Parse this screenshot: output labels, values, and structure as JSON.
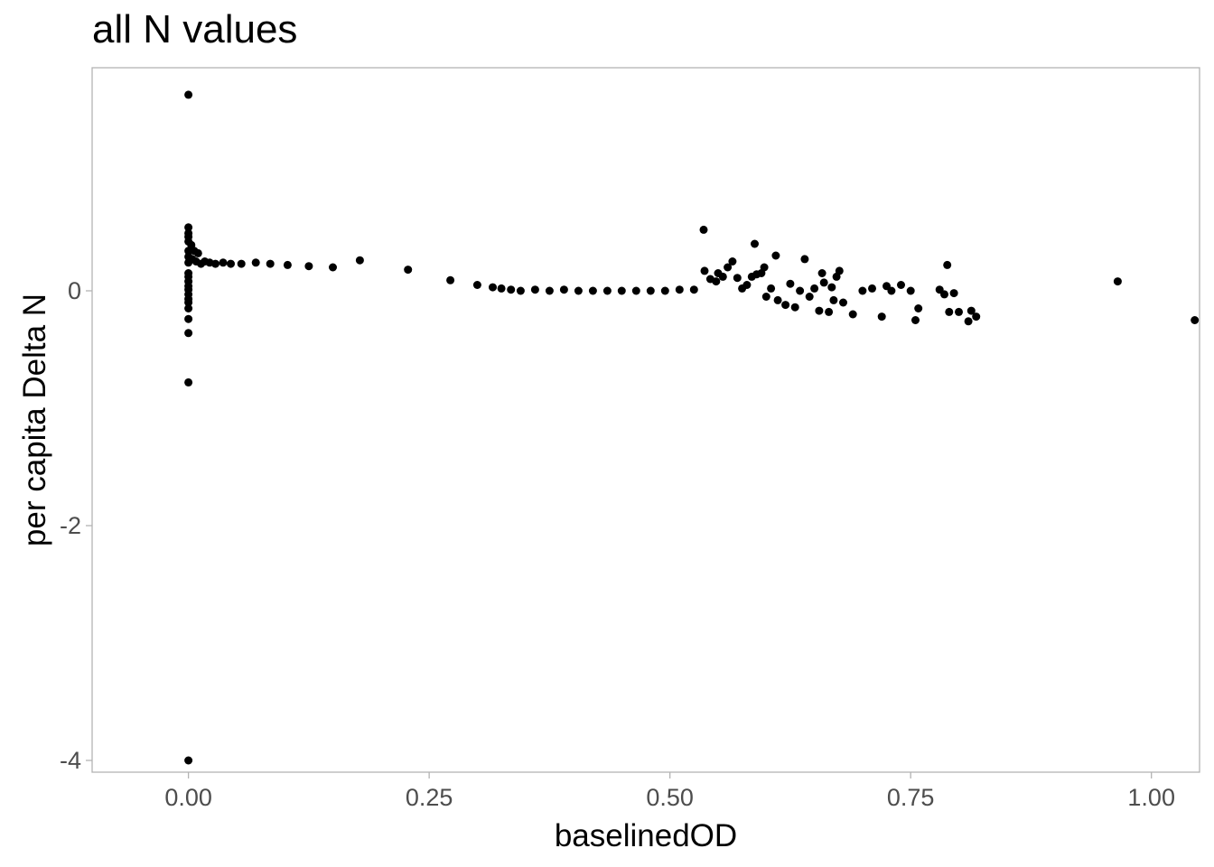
{
  "chart_data": {
    "type": "scatter",
    "title": "all N values",
    "xlabel": "baselinedOD",
    "ylabel": "per capita Delta N",
    "xlim": [
      -0.1,
      1.05
    ],
    "ylim": [
      -4.1,
      1.9
    ],
    "x_ticks": [
      0.0,
      0.25,
      0.5,
      0.75,
      1.0
    ],
    "x_tick_labels": [
      "0.00",
      "0.25",
      "0.50",
      "0.75",
      "1.00"
    ],
    "y_ticks": [
      -4,
      -2,
      0
    ],
    "y_tick_labels": [
      "-4",
      "-2",
      "0"
    ],
    "grid": false,
    "point_color": "#000000",
    "panel_border_color": "#b3b3b3",
    "points": [
      [
        0.0,
        1.67
      ],
      [
        0.0,
        0.54
      ],
      [
        0.0,
        0.49
      ],
      [
        0.0,
        0.46
      ],
      [
        0.0,
        0.42
      ],
      [
        0.0,
        0.34
      ],
      [
        0.0,
        0.29
      ],
      [
        0.0,
        0.24
      ],
      [
        0.0,
        0.15
      ],
      [
        0.0,
        0.12
      ],
      [
        0.0,
        0.08
      ],
      [
        0.0,
        0.04
      ],
      [
        0.0,
        0.01
      ],
      [
        0.0,
        -0.03
      ],
      [
        0.0,
        -0.07
      ],
      [
        0.0,
        -0.1
      ],
      [
        0.0,
        -0.15
      ],
      [
        0.0,
        -0.24
      ],
      [
        0.0,
        -0.36
      ],
      [
        0.0,
        -0.78
      ],
      [
        0.0,
        -4.0
      ],
      [
        0.003,
        0.39
      ],
      [
        0.004,
        0.27
      ],
      [
        0.006,
        0.34
      ],
      [
        0.008,
        0.25
      ],
      [
        0.01,
        0.32
      ],
      [
        0.013,
        0.23
      ],
      [
        0.017,
        0.25
      ],
      [
        0.022,
        0.24
      ],
      [
        0.028,
        0.23
      ],
      [
        0.036,
        0.24
      ],
      [
        0.044,
        0.23
      ],
      [
        0.055,
        0.23
      ],
      [
        0.07,
        0.24
      ],
      [
        0.085,
        0.23
      ],
      [
        0.103,
        0.22
      ],
      [
        0.125,
        0.21
      ],
      [
        0.15,
        0.2
      ],
      [
        0.178,
        0.26
      ],
      [
        0.228,
        0.18
      ],
      [
        0.272,
        0.09
      ],
      [
        0.3,
        0.05
      ],
      [
        0.316,
        0.03
      ],
      [
        0.325,
        0.02
      ],
      [
        0.335,
        0.01
      ],
      [
        0.345,
        0.0
      ],
      [
        0.36,
        0.01
      ],
      [
        0.375,
        0.0
      ],
      [
        0.39,
        0.01
      ],
      [
        0.405,
        0.0
      ],
      [
        0.42,
        0.0
      ],
      [
        0.435,
        0.0
      ],
      [
        0.45,
        0.0
      ],
      [
        0.465,
        0.0
      ],
      [
        0.48,
        0.0
      ],
      [
        0.495,
        0.0
      ],
      [
        0.51,
        0.01
      ],
      [
        0.525,
        0.01
      ],
      [
        0.535,
        0.52
      ],
      [
        0.536,
        0.17
      ],
      [
        0.542,
        0.1
      ],
      [
        0.548,
        0.08
      ],
      [
        0.55,
        0.15
      ],
      [
        0.555,
        0.12
      ],
      [
        0.56,
        0.2
      ],
      [
        0.565,
        0.25
      ],
      [
        0.57,
        0.11
      ],
      [
        0.575,
        0.02
      ],
      [
        0.58,
        0.05
      ],
      [
        0.585,
        0.12
      ],
      [
        0.588,
        0.4
      ],
      [
        0.59,
        0.14
      ],
      [
        0.595,
        0.15
      ],
      [
        0.598,
        0.2
      ],
      [
        0.6,
        -0.05
      ],
      [
        0.605,
        0.02
      ],
      [
        0.61,
        0.3
      ],
      [
        0.612,
        -0.08
      ],
      [
        0.62,
        -0.12
      ],
      [
        0.625,
        0.06
      ],
      [
        0.63,
        -0.14
      ],
      [
        0.635,
        0.0
      ],
      [
        0.64,
        0.27
      ],
      [
        0.645,
        -0.05
      ],
      [
        0.65,
        0.02
      ],
      [
        0.655,
        -0.17
      ],
      [
        0.658,
        0.15
      ],
      [
        0.66,
        0.07
      ],
      [
        0.665,
        -0.18
      ],
      [
        0.668,
        0.03
      ],
      [
        0.67,
        -0.08
      ],
      [
        0.673,
        0.12
      ],
      [
        0.676,
        0.17
      ],
      [
        0.68,
        -0.1
      ],
      [
        0.69,
        -0.2
      ],
      [
        0.7,
        0.0
      ],
      [
        0.71,
        0.02
      ],
      [
        0.72,
        -0.22
      ],
      [
        0.725,
        0.04
      ],
      [
        0.73,
        0.0
      ],
      [
        0.74,
        0.05
      ],
      [
        0.75,
        0.0
      ],
      [
        0.755,
        -0.25
      ],
      [
        0.758,
        -0.15
      ],
      [
        0.78,
        0.01
      ],
      [
        0.785,
        -0.03
      ],
      [
        0.788,
        0.22
      ],
      [
        0.79,
        -0.18
      ],
      [
        0.795,
        -0.02
      ],
      [
        0.8,
        -0.18
      ],
      [
        0.81,
        -0.26
      ],
      [
        0.813,
        -0.17
      ],
      [
        0.818,
        -0.22
      ],
      [
        0.965,
        0.08
      ],
      [
        1.045,
        -0.25
      ]
    ]
  }
}
